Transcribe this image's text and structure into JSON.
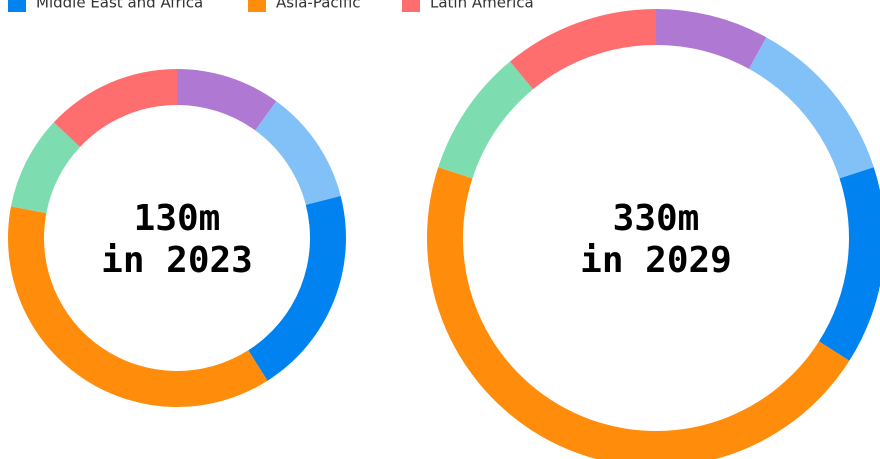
{
  "chart_data": [
    {
      "type": "donut",
      "center_label": [
        "130m",
        "in 2023"
      ],
      "categories": [
        null,
        null,
        "Middle East and Africa",
        "Asia-Pacific",
        null,
        "Latin America"
      ],
      "values": [
        10,
        11,
        20,
        37,
        9,
        13
      ],
      "colors": [
        "#af78d2",
        "#82c0f8",
        "#0082f0",
        "#ff8c0a",
        "#7ddcb0",
        "#ff6e6e"
      ]
    },
    {
      "type": "donut",
      "center_label": [
        "330m",
        "in 2029"
      ],
      "categories": [
        null,
        null,
        "Middle East and Africa",
        "Asia-Pacific",
        null,
        "Latin America"
      ],
      "values": [
        8,
        12,
        14,
        46,
        9,
        11
      ],
      "colors": [
        "#af78d2",
        "#82c0f8",
        "#0082f0",
        "#ff8c0a",
        "#7ddcb0",
        "#ff6e6e"
      ]
    }
  ]
}
